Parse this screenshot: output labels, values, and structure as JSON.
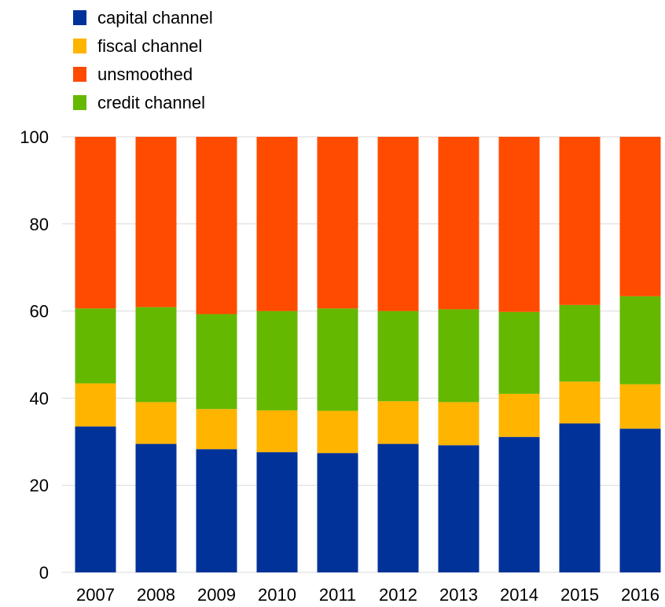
{
  "chart_data": {
    "type": "bar",
    "stacked": true,
    "categories": [
      "2007",
      "2008",
      "2009",
      "2010",
      "2011",
      "2012",
      "2013",
      "2014",
      "2015",
      "2016"
    ],
    "series": [
      {
        "name": "capital channel",
        "color": "#003299",
        "values": [
          33.5,
          29.5,
          28.3,
          27.6,
          27.4,
          29.5,
          29.2,
          31.1,
          34.2,
          33.0
        ]
      },
      {
        "name": "fiscal channel",
        "color": "#ffb400",
        "values": [
          9.9,
          9.6,
          9.2,
          9.6,
          9.7,
          9.8,
          9.9,
          9.9,
          9.6,
          10.2
        ]
      },
      {
        "name": "credit channel",
        "color": "#65b800",
        "values": [
          17.2,
          21.8,
          21.8,
          22.8,
          23.5,
          20.7,
          21.3,
          18.8,
          17.6,
          20.2
        ]
      },
      {
        "name": "unsmoothed",
        "color": "#ff4b00",
        "values": [
          39.4,
          39.1,
          40.7,
          40.0,
          39.4,
          40.0,
          39.6,
          40.2,
          38.6,
          36.6
        ]
      }
    ],
    "legend_order": [
      "capital channel",
      "fiscal channel",
      "unsmoothed",
      "credit channel"
    ],
    "title": "",
    "xlabel": "",
    "ylabel": "",
    "ylim": [
      0,
      100
    ],
    "yticks": [
      0,
      20,
      40,
      60,
      80,
      100
    ],
    "grid": true,
    "legend_position": "top-left"
  }
}
